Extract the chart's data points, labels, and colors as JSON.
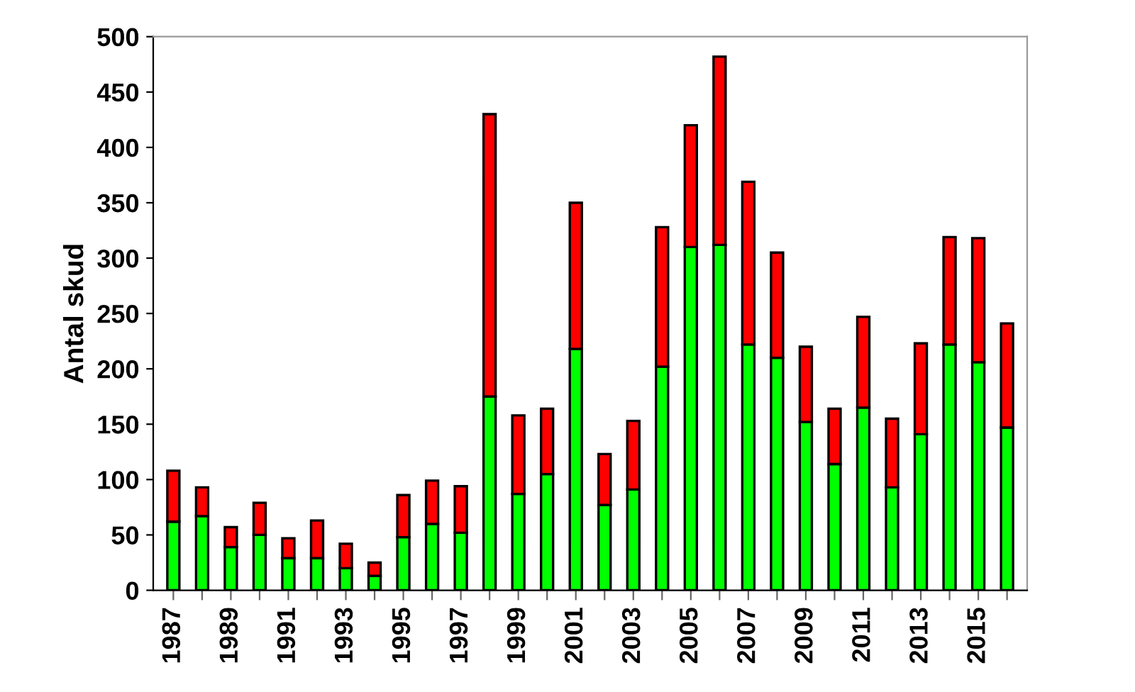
{
  "chart_data": {
    "type": "bar",
    "stacked": true,
    "ylabel": "Antal skud",
    "categories": [
      "1987",
      null,
      "1989",
      null,
      "1991",
      null,
      "1993",
      null,
      "1995",
      null,
      "1997",
      null,
      "1999",
      null,
      "2001",
      null,
      "2003",
      null,
      "2005",
      null,
      "2007",
      null,
      "2009",
      null,
      "2011",
      null,
      "2013",
      null,
      "2015",
      null
    ],
    "series": [
      {
        "color": "#00ff00",
        "values": [
          62,
          67,
          39,
          50,
          29,
          29,
          20,
          13,
          48,
          60,
          52,
          175,
          87,
          105,
          218,
          77,
          91,
          202,
          310,
          312,
          222,
          210,
          152,
          114,
          165,
          93,
          141,
          222,
          206,
          147
        ]
      },
      {
        "color": "#ff0000",
        "values": [
          46,
          26,
          18,
          29,
          18,
          34,
          22,
          12,
          38,
          39,
          42,
          255,
          71,
          59,
          132,
          46,
          62,
          126,
          110,
          170,
          147,
          95,
          68,
          50,
          82,
          62,
          82,
          97,
          112,
          94
        ]
      }
    ],
    "ylim": [
      0,
      500
    ],
    "yticks": [
      0,
      50,
      100,
      150,
      200,
      250,
      300,
      350,
      400,
      450,
      500
    ],
    "grid": false,
    "legend": false
  }
}
